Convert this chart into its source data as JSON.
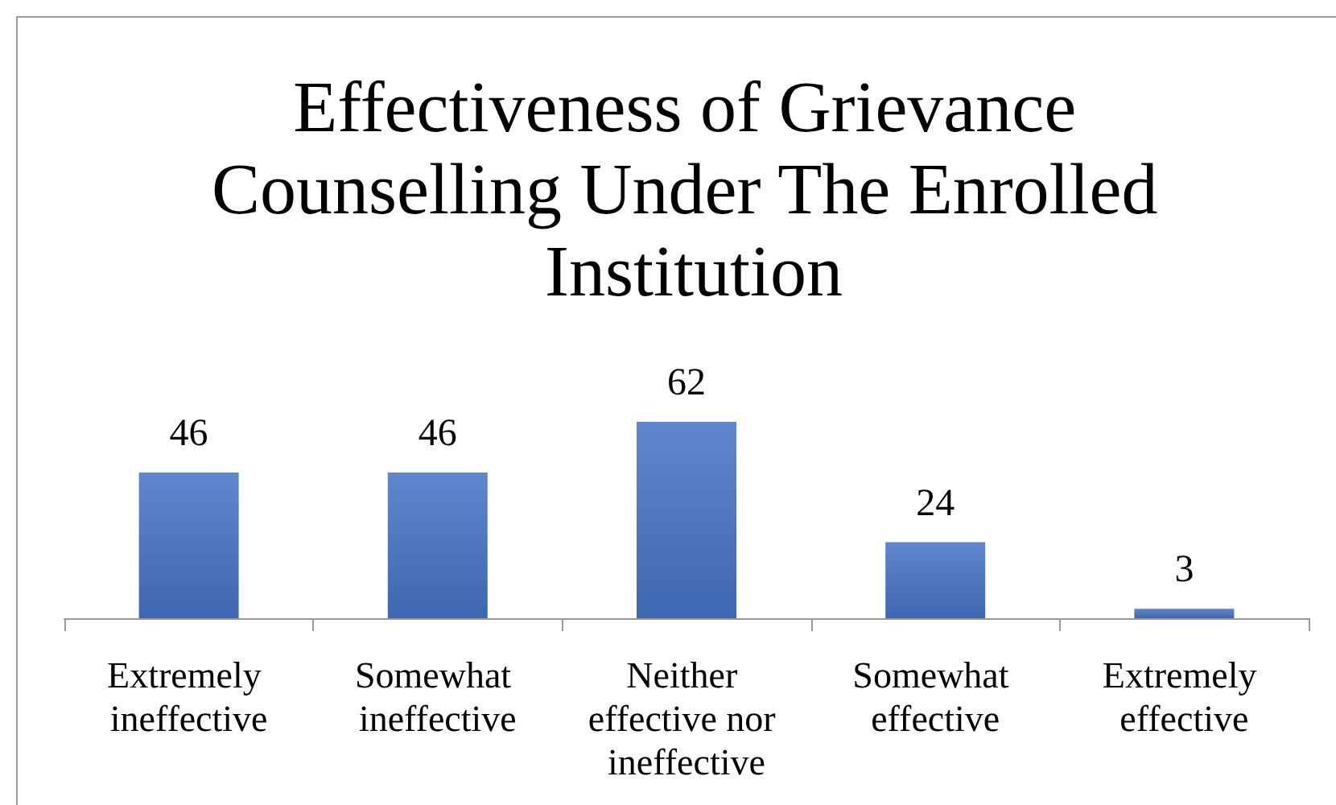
{
  "chart_data": {
    "type": "bar",
    "title": "Effectiveness of Grievance Counselling Under The Enrolled Institution",
    "categories": [
      "Extremely ineffective",
      "Somewhat ineffective",
      "Neither effective nor ineffective",
      "Somewhat effective",
      "Extremely effective"
    ],
    "values": [
      46,
      46,
      62,
      24,
      3
    ],
    "color": "#4472c4",
    "data_labels": true
  }
}
